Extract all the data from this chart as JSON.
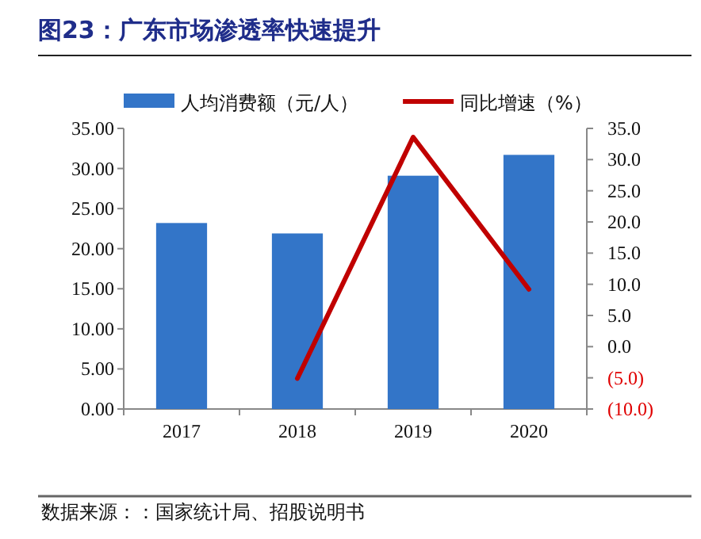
{
  "chart_data": {
    "type": "bar",
    "title": "图23：广东市场渗透率快速提升",
    "categories": [
      "2017",
      "2018",
      "2019",
      "2020"
    ],
    "series": [
      {
        "name": "人均消费额（元/人）",
        "color": "#3375c8",
        "values": [
          23.2,
          21.9,
          29.1,
          31.7
        ]
      },
      {
        "name": "同比增速（%）",
        "type": "line",
        "axis": "y2",
        "color": "#c00000",
        "values": [
          null,
          -5.1,
          33.6,
          9.2
        ]
      }
    ],
    "ylim": [
      0,
      35
    ],
    "yticks": [
      {
        "value": 0,
        "label": "0.00"
      },
      {
        "value": 5,
        "label": "5.00"
      },
      {
        "value": 10,
        "label": "10.00"
      },
      {
        "value": 15,
        "label": "15.00"
      },
      {
        "value": 20,
        "label": "20.00"
      },
      {
        "value": 25,
        "label": "25.00"
      },
      {
        "value": 30,
        "label": "30.00"
      },
      {
        "value": 35,
        "label": "35.00"
      }
    ],
    "y2lim": [
      -10,
      35
    ],
    "y2ticks": [
      {
        "value": -10,
        "label": "(10.0)"
      },
      {
        "value": -5,
        "label": "(5.0)"
      },
      {
        "value": 0,
        "label": "0.0"
      },
      {
        "value": 5,
        "label": "5.0"
      },
      {
        "value": 10,
        "label": "10.0"
      },
      {
        "value": 15,
        "label": "15.0"
      },
      {
        "value": 20,
        "label": "20.0"
      },
      {
        "value": 25,
        "label": "25.0"
      },
      {
        "value": 30,
        "label": "30.0"
      },
      {
        "value": 35,
        "label": "35.0"
      }
    ],
    "legend": "top",
    "grid": false,
    "annotations": [
      "数据来源：：国家统计局、招股说明书"
    ]
  }
}
